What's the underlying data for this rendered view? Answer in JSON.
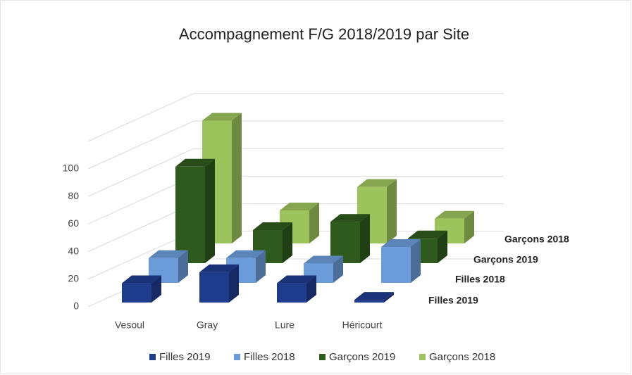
{
  "chart_data": {
    "type": "bar3d",
    "title": "Accompagnement F/G 2018/2019 par Site",
    "categories": [
      "Vesoul",
      "Gray",
      "Lure",
      "Héricourt"
    ],
    "series": [
      {
        "name": "Filles 2019",
        "color": "#1f3b8c",
        "values": [
          14,
          22,
          14,
          2
        ]
      },
      {
        "name": "Filles 2018",
        "color": "#6b9bd9",
        "values": [
          18,
          18,
          14,
          26
        ]
      },
      {
        "name": "Garçons 2019",
        "color": "#2f5a1d",
        "values": [
          70,
          24,
          30,
          18
        ]
      },
      {
        "name": "Garçons 2018",
        "color": "#9dc35c",
        "values": [
          89,
          24,
          41,
          18
        ]
      }
    ],
    "ylim": [
      0,
      120
    ],
    "yticks": [
      0,
      20,
      40,
      60,
      80,
      100
    ],
    "grid": true,
    "legend": "bottom"
  }
}
